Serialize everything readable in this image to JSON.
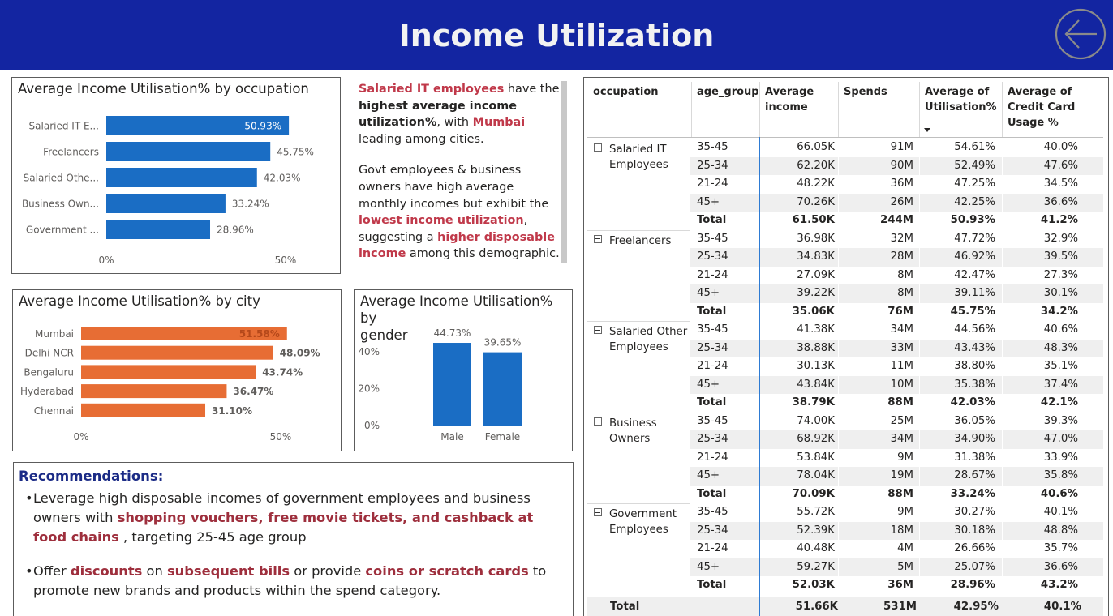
{
  "header": {
    "title": "Income Utilization",
    "back_icon": "back-arrow-circle-icon"
  },
  "chart_occupation": {
    "title": "Average Income Utilisation% by occupation",
    "bar_color": "#1a6dc4",
    "label_color_inside": "#ffffff",
    "tick_labels": [
      "0%",
      "50%"
    ],
    "chart_data": {
      "type": "bar",
      "orientation": "horizontal",
      "categories": [
        "Salaried IT E...",
        "Freelancers",
        "Salaried Othe...",
        "Business Own...",
        "Government ..."
      ],
      "values": [
        50.93,
        45.75,
        42.03,
        33.24,
        28.96
      ],
      "value_labels": [
        "50.93%",
        "45.75%",
        "42.03%",
        "33.24%",
        "28.96%"
      ],
      "xlim": [
        0,
        50
      ]
    }
  },
  "chart_city": {
    "title": "Average Income Utilisation% by city",
    "bar_color": "#e76d34",
    "tick_labels": [
      "0%",
      "50%"
    ],
    "chart_data": {
      "type": "bar",
      "orientation": "horizontal",
      "categories": [
        "Mumbai",
        "Delhi NCR",
        "Bengaluru",
        "Hyderabad",
        "Chennai"
      ],
      "values": [
        51.58,
        48.09,
        43.74,
        36.47,
        31.1
      ],
      "value_labels": [
        "51.58%",
        "48.09%",
        "43.74%",
        "36.47%",
        "31.10%"
      ],
      "xlim": [
        0,
        50
      ]
    }
  },
  "chart_gender": {
    "title_line1": "Average Income Utilisation% by",
    "title_line2": "gender",
    "bar_color": "#1a6dc4",
    "tick_labels": [
      "40%",
      "20%",
      "0%"
    ],
    "chart_data": {
      "type": "bar",
      "orientation": "vertical",
      "categories": [
        "Male",
        "Female"
      ],
      "values": [
        44.73,
        39.65
      ],
      "value_labels": [
        "44.73%",
        "39.65%"
      ],
      "ylim": [
        0,
        50
      ]
    }
  },
  "insight": {
    "p1_a": "Salaried IT employees",
    "p1_b": " have the ",
    "p1_c": "highest average income utilization%",
    "p1_d": ", with ",
    "p1_e": "Mumbai",
    "p1_f": " leading among cities.",
    "p2_a": "Govt employees & business owners have high average monthly incomes but exhibit the ",
    "p2_b": "lowest income utilization",
    "p2_c": ", suggesting a ",
    "p2_d": "higher disposable income",
    "p2_e": " among this demographic."
  },
  "recommendations": {
    "title": "Recommendations:",
    "bullet": "•",
    "r1_a": "Leverage high disposable incomes of government employees and business owners with ",
    "r1_b": "shopping vouchers, free movie tickets, and cashback at food chains",
    "r1_c": " , targeting 25-45 age group",
    "r2_a": "Offer ",
    "r2_b": "discounts",
    "r2_c": " on ",
    "r2_d": "subsequent bills",
    "r2_e": " or provide ",
    "r2_f": "coins or scratch cards",
    "r2_g": " to promote new brands and products within the spend category."
  },
  "table": {
    "headers": {
      "occupation": "occupation",
      "age_group": "age_group",
      "avg_income_1": "Average",
      "avg_income_2": "income",
      "spends": "Spends",
      "util_1": "Average of",
      "util_2": "Utilisation%",
      "cc_1": "Average of",
      "cc_2": "Credit Card",
      "cc_3": "Usage %"
    },
    "groups": [
      {
        "label_1": "Salaried IT",
        "label_2": "Employees",
        "rows": [
          {
            "age": "35-45",
            "income": "66.05K",
            "spends": "91M",
            "util": "54.61%",
            "cc": "40.0%"
          },
          {
            "age": "25-34",
            "income": "62.20K",
            "spends": "90M",
            "util": "52.49%",
            "cc": "47.6%"
          },
          {
            "age": "21-24",
            "income": "48.22K",
            "spends": "36M",
            "util": "47.25%",
            "cc": "34.5%"
          },
          {
            "age": "45+",
            "income": "70.26K",
            "spends": "26M",
            "util": "42.25%",
            "cc": "36.6%"
          },
          {
            "age": "Total",
            "income": "61.50K",
            "spends": "244M",
            "util": "50.93%",
            "cc": "41.2%"
          }
        ]
      },
      {
        "label_1": "Freelancers",
        "label_2": "",
        "rows": [
          {
            "age": "35-45",
            "income": "36.98K",
            "spends": "32M",
            "util": "47.72%",
            "cc": "32.9%"
          },
          {
            "age": "25-34",
            "income": "34.83K",
            "spends": "28M",
            "util": "46.92%",
            "cc": "39.5%"
          },
          {
            "age": "21-24",
            "income": "27.09K",
            "spends": "8M",
            "util": "42.47%",
            "cc": "27.3%"
          },
          {
            "age": "45+",
            "income": "39.22K",
            "spends": "8M",
            "util": "39.11%",
            "cc": "30.1%"
          },
          {
            "age": "Total",
            "income": "35.06K",
            "spends": "76M",
            "util": "45.75%",
            "cc": "34.2%"
          }
        ]
      },
      {
        "label_1": "Salaried Other",
        "label_2": "Employees",
        "rows": [
          {
            "age": "35-45",
            "income": "41.38K",
            "spends": "34M",
            "util": "44.56%",
            "cc": "40.6%"
          },
          {
            "age": "25-34",
            "income": "38.88K",
            "spends": "33M",
            "util": "43.43%",
            "cc": "48.3%"
          },
          {
            "age": "21-24",
            "income": "30.13K",
            "spends": "11M",
            "util": "38.80%",
            "cc": "35.1%"
          },
          {
            "age": "45+",
            "income": "43.84K",
            "spends": "10M",
            "util": "35.38%",
            "cc": "37.4%"
          },
          {
            "age": "Total",
            "income": "38.79K",
            "spends": "88M",
            "util": "42.03%",
            "cc": "42.1%"
          }
        ]
      },
      {
        "label_1": "Business",
        "label_2": "Owners",
        "rows": [
          {
            "age": "35-45",
            "income": "74.00K",
            "spends": "25M",
            "util": "36.05%",
            "cc": "39.3%"
          },
          {
            "age": "25-34",
            "income": "68.92K",
            "spends": "34M",
            "util": "34.90%",
            "cc": "47.0%"
          },
          {
            "age": "21-24",
            "income": "53.84K",
            "spends": "9M",
            "util": "31.38%",
            "cc": "33.9%"
          },
          {
            "age": "45+",
            "income": "78.04K",
            "spends": "19M",
            "util": "28.67%",
            "cc": "35.8%"
          },
          {
            "age": "Total",
            "income": "70.09K",
            "spends": "88M",
            "util": "33.24%",
            "cc": "40.6%"
          }
        ]
      },
      {
        "label_1": "Government",
        "label_2": "Employees",
        "rows": [
          {
            "age": "35-45",
            "income": "55.72K",
            "spends": "9M",
            "util": "30.27%",
            "cc": "40.1%"
          },
          {
            "age": "25-34",
            "income": "52.39K",
            "spends": "18M",
            "util": "30.18%",
            "cc": "48.8%"
          },
          {
            "age": "21-24",
            "income": "40.48K",
            "spends": "4M",
            "util": "26.66%",
            "cc": "35.7%"
          },
          {
            "age": "45+",
            "income": "59.27K",
            "spends": "5M",
            "util": "25.07%",
            "cc": "36.6%"
          },
          {
            "age": "Total",
            "income": "52.03K",
            "spends": "36M",
            "util": "28.96%",
            "cc": "43.2%"
          }
        ]
      }
    ],
    "grand_total": {
      "label": "Total",
      "income": "51.66K",
      "spends": "531M",
      "util": "42.95%",
      "cc": "40.1%"
    }
  }
}
